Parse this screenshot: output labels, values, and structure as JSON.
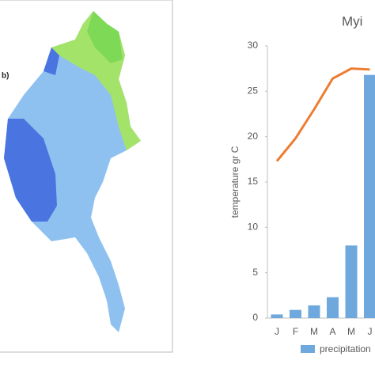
{
  "map_label": "b)",
  "chart_data": {
    "type": "bar-line",
    "title": "Myi",
    "y_label": "temperature gr C",
    "categories": [
      "J",
      "F",
      "M",
      "A",
      "M",
      "J"
    ],
    "series": [
      {
        "name": "precipitation",
        "type": "bar",
        "color": "#6fa8dc",
        "values": [
          0.4,
          0.9,
          1.4,
          2.3,
          8.0,
          26.8
        ]
      },
      {
        "type": "line",
        "color": "#ed7d31",
        "values": [
          17.3,
          19.8,
          23.0,
          26.4,
          27.5,
          27.4
        ]
      }
    ],
    "ylim": [
      0,
      30
    ],
    "yticks": [
      0,
      5,
      10,
      15,
      20,
      25,
      30
    ]
  }
}
